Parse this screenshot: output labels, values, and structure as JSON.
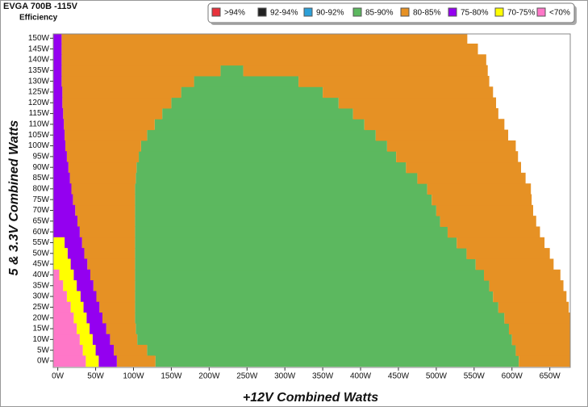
{
  "chart_data": {
    "type": "heatmap-bands",
    "title": "EVGA 700B -115V",
    "subtitle": "Efficiency",
    "x_label": "+12V Combined Watts",
    "y_label": "5 & 3.3V Combined Watts",
    "xlim": [
      -6,
      677
    ],
    "ylim": [
      -3,
      152
    ],
    "xticks": [
      {
        "value": 0,
        "label": "0W"
      },
      {
        "value": 50,
        "label": "50W"
      },
      {
        "value": 100,
        "label": "100W"
      },
      {
        "value": 150,
        "label": "150W"
      },
      {
        "value": 200,
        "label": "200W"
      },
      {
        "value": 250,
        "label": "250W"
      },
      {
        "value": 300,
        "label": "300W"
      },
      {
        "value": 350,
        "label": "350W"
      },
      {
        "value": 400,
        "label": "400W"
      },
      {
        "value": 450,
        "label": "450W"
      },
      {
        "value": 500,
        "label": "500W"
      },
      {
        "value": 550,
        "label": "550W"
      },
      {
        "value": 600,
        "label": "600W"
      },
      {
        "value": 650,
        "label": "650W"
      }
    ],
    "yticks": [
      {
        "value": 0,
        "label": "0W"
      },
      {
        "value": 5,
        "label": "5W"
      },
      {
        "value": 10,
        "label": "10W"
      },
      {
        "value": 15,
        "label": "15W"
      },
      {
        "value": 20,
        "label": "20W"
      },
      {
        "value": 25,
        "label": "25W"
      },
      {
        "value": 30,
        "label": "30W"
      },
      {
        "value": 35,
        "label": "35W"
      },
      {
        "value": 40,
        "label": "40W"
      },
      {
        "value": 45,
        "label": "45W"
      },
      {
        "value": 50,
        "label": "50W"
      },
      {
        "value": 55,
        "label": "55W"
      },
      {
        "value": 60,
        "label": "60W"
      },
      {
        "value": 65,
        "label": "65W"
      },
      {
        "value": 70,
        "label": "70W"
      },
      {
        "value": 75,
        "label": "75W"
      },
      {
        "value": 80,
        "label": "80W"
      },
      {
        "value": 85,
        "label": "85W"
      },
      {
        "value": 90,
        "label": "90W"
      },
      {
        "value": 95,
        "label": "95W"
      },
      {
        "value": 100,
        "label": "100W"
      },
      {
        "value": 105,
        "label": "105W"
      },
      {
        "value": 110,
        "label": "110W"
      },
      {
        "value": 115,
        "label": "115W"
      },
      {
        "value": 120,
        "label": "120W"
      },
      {
        "value": 125,
        "label": "125W"
      },
      {
        "value": 130,
        "label": "130W"
      },
      {
        "value": 135,
        "label": "135W"
      },
      {
        "value": 140,
        "label": "140W"
      },
      {
        "value": 145,
        "label": "145W"
      },
      {
        "value": 150,
        "label": "150W"
      }
    ],
    "y": [
      0,
      5,
      10,
      15,
      20,
      25,
      30,
      35,
      40,
      45,
      50,
      55,
      60,
      65,
      70,
      75,
      80,
      85,
      90,
      95,
      100,
      105,
      110,
      115,
      120,
      125,
      130,
      135,
      140,
      145,
      150
    ],
    "series": [
      {
        "name": ">94%",
        "color": "#e8323c",
        "values": [
          null,
          null,
          null,
          null,
          null,
          null,
          null,
          null,
          null,
          null,
          null,
          null,
          null,
          null,
          null,
          null,
          null,
          null,
          null,
          null,
          null,
          null,
          null,
          null,
          null,
          null,
          null,
          null,
          null,
          null,
          null
        ]
      },
      {
        "name": "92-94%",
        "color": "#222222",
        "values": [
          null,
          null,
          null,
          null,
          null,
          null,
          null,
          null,
          null,
          null,
          null,
          null,
          null,
          null,
          null,
          null,
          null,
          null,
          null,
          null,
          null,
          null,
          null,
          null,
          null,
          null,
          null,
          null,
          null,
          null,
          null
        ]
      },
      {
        "name": "90-92%",
        "color": "#2ca0d8",
        "values": [
          null,
          null,
          null,
          null,
          null,
          null,
          null,
          null,
          null,
          null,
          null,
          null,
          null,
          null,
          null,
          null,
          null,
          null,
          null,
          null,
          null,
          null,
          null,
          null,
          null,
          null,
          null,
          null,
          null,
          null,
          null
        ]
      },
      {
        "name": "85-90%",
        "color": "#5cb85f",
        "values": [
          [
            [
              129,
              609
            ]
          ],
          [
            [
              118,
              605
            ]
          ],
          [
            [
              105,
              600
            ]
          ],
          [
            [
              103,
              596
            ]
          ],
          [
            [
              102,
              590
            ]
          ],
          [
            [
              102,
              582
            ]
          ],
          [
            [
              102,
              575
            ]
          ],
          [
            [
              102,
              570
            ]
          ],
          [
            [
              102,
              563
            ]
          ],
          [
            [
              102,
              552
            ]
          ],
          [
            [
              102,
              540
            ]
          ],
          [
            [
              102,
              527
            ]
          ],
          [
            [
              102,
              515
            ]
          ],
          [
            [
              102,
              505
            ]
          ],
          [
            [
              102,
              500
            ]
          ],
          [
            [
              102,
              494
            ]
          ],
          [
            [
              102,
              488
            ]
          ],
          [
            [
              103,
              475
            ]
          ],
          [
            [
              104,
              460
            ]
          ],
          [
            [
              107,
              447
            ]
          ],
          [
            [
              110,
              435
            ]
          ],
          [
            [
              118,
              420
            ]
          ],
          [
            [
              128,
              405
            ]
          ],
          [
            [
              138,
              390
            ]
          ],
          [
            [
              150,
              371
            ]
          ],
          [
            [
              163,
              350
            ]
          ],
          [
            [
              180,
              318
            ]
          ],
          [
            [
              215,
              245
            ]
          ],
          null,
          null,
          null
        ]
      },
      {
        "name": "80-85%",
        "color": "#e69124",
        "values": [
          [
            [
              78,
              129
            ],
            [
              609,
              677
            ]
          ],
          [
            [
              74,
              118
            ],
            [
              605,
              677
            ]
          ],
          [
            [
              69,
              105
            ],
            [
              600,
              677
            ]
          ],
          [
            [
              64,
              103
            ],
            [
              596,
              677
            ]
          ],
          [
            [
              59,
              102
            ],
            [
              590,
              677
            ]
          ],
          [
            [
              55,
              102
            ],
            [
              582,
              675
            ]
          ],
          [
            [
              51,
              102
            ],
            [
              575,
              672
            ]
          ],
          [
            [
              47,
              102
            ],
            [
              570,
              668
            ]
          ],
          [
            [
              43,
              102
            ],
            [
              563,
              664
            ]
          ],
          [
            [
              39,
              102
            ],
            [
              552,
              655
            ]
          ],
          [
            [
              35,
              102
            ],
            [
              540,
              650
            ]
          ],
          [
            [
              32,
              102
            ],
            [
              527,
              643
            ]
          ],
          [
            [
              29,
              102
            ],
            [
              515,
              637
            ]
          ],
          [
            [
              26,
              102
            ],
            [
              505,
              632
            ]
          ],
          [
            [
              23,
              102
            ],
            [
              500,
              628
            ]
          ],
          [
            [
              20,
              102
            ],
            [
              494,
              626
            ]
          ],
          [
            [
              18,
              102
            ],
            [
              488,
              625
            ]
          ],
          [
            [
              16,
              103
            ],
            [
              475,
              618
            ]
          ],
          [
            [
              14,
              104
            ],
            [
              460,
              612
            ]
          ],
          [
            [
              12,
              107
            ],
            [
              447,
              608
            ]
          ],
          [
            [
              10,
              110
            ],
            [
              435,
              605
            ]
          ],
          [
            [
              9,
              118
            ],
            [
              420,
              595
            ]
          ],
          [
            [
              8,
              128
            ],
            [
              405,
              590
            ]
          ],
          [
            [
              7,
              138
            ],
            [
              390,
              582
            ]
          ],
          [
            [
              6,
              150
            ],
            [
              371,
              579
            ]
          ],
          [
            [
              6,
              163
            ],
            [
              350,
              575
            ]
          ],
          [
            [
              5,
              180
            ],
            [
              318,
              570
            ]
          ],
          [
            [
              5,
              215
            ],
            [
              245,
              568
            ]
          ],
          [
            [
              5,
              566
            ]
          ],
          [
            [
              5,
              555
            ]
          ],
          [
            [
              5,
              541
            ]
          ]
        ]
      },
      {
        "name": "75-80%",
        "color": "#9400f0",
        "values": [
          [
            [
              54,
              78
            ]
          ],
          [
            [
              50,
              74
            ]
          ],
          [
            [
              46,
              69
            ]
          ],
          [
            [
              42,
              64
            ]
          ],
          [
            [
              38,
              59
            ]
          ],
          [
            [
              34,
              55
            ]
          ],
          [
            [
              30,
              51
            ]
          ],
          [
            [
              25,
              47
            ]
          ],
          [
            [
              21,
              43
            ]
          ],
          [
            [
              17,
              39
            ]
          ],
          [
            [
              13,
              35
            ]
          ],
          [
            [
              9,
              32
            ]
          ],
          [
            [
              -6,
              29
            ]
          ],
          [
            [
              -6,
              26
            ]
          ],
          [
            [
              -6,
              23
            ]
          ],
          [
            [
              -6,
              20
            ]
          ],
          [
            [
              -6,
              18
            ]
          ],
          [
            [
              -6,
              16
            ]
          ],
          [
            [
              -6,
              14
            ]
          ],
          [
            [
              -6,
              12
            ]
          ],
          [
            [
              -6,
              10
            ]
          ],
          [
            [
              -6,
              9
            ]
          ],
          [
            [
              -6,
              8
            ]
          ],
          [
            [
              -6,
              7
            ]
          ],
          [
            [
              -6,
              6
            ]
          ],
          [
            [
              -6,
              6
            ]
          ],
          [
            [
              -6,
              5
            ]
          ],
          [
            [
              -6,
              5
            ]
          ],
          [
            [
              -6,
              5
            ]
          ],
          [
            [
              -6,
              5
            ]
          ],
          [
            [
              -6,
              5
            ]
          ]
        ]
      },
      {
        "name": "70-75%",
        "color": "#ffff00",
        "values": [
          [
            [
              37,
              54
            ]
          ],
          [
            [
              33,
              50
            ]
          ],
          [
            [
              29,
              46
            ]
          ],
          [
            [
              25,
              42
            ]
          ],
          [
            [
              21,
              38
            ]
          ],
          [
            [
              17,
              34
            ]
          ],
          [
            [
              12,
              30
            ]
          ],
          [
            [
              7,
              25
            ]
          ],
          [
            [
              2,
              21
            ]
          ],
          [
            [
              -6,
              17
            ]
          ],
          [
            [
              -6,
              13
            ]
          ],
          [
            [
              -6,
              9
            ]
          ],
          null,
          null,
          null,
          null,
          null,
          null,
          null,
          null,
          null,
          null,
          null,
          null,
          null,
          null,
          null,
          null,
          null,
          null,
          null
        ]
      },
      {
        "name": "<70%",
        "color": "#ff77c8",
        "values": [
          [
            [
              -6,
              37
            ]
          ],
          [
            [
              -6,
              33
            ]
          ],
          [
            [
              -6,
              29
            ]
          ],
          [
            [
              -6,
              25
            ]
          ],
          [
            [
              -6,
              21
            ]
          ],
          [
            [
              -6,
              17
            ]
          ],
          [
            [
              -6,
              12
            ]
          ],
          [
            [
              -6,
              7
            ]
          ],
          [
            [
              -6,
              2
            ]
          ],
          null,
          null,
          null,
          null,
          null,
          null,
          null,
          null,
          null,
          null,
          null,
          null,
          null,
          null,
          null,
          null,
          null,
          null,
          null,
          null,
          null,
          null
        ]
      }
    ]
  }
}
